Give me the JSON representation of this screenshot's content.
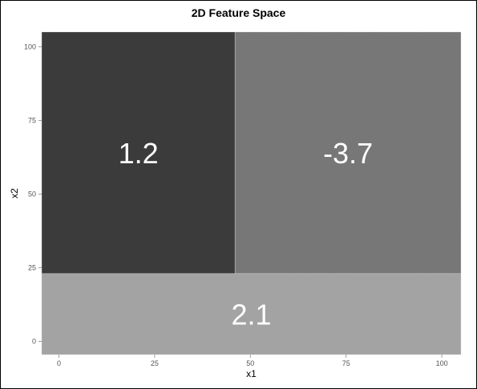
{
  "chart_data": {
    "type": "heatmap",
    "title": "2D Feature Space",
    "xlabel": "x1",
    "ylabel": "x2",
    "xlim": [
      -4.5,
      105
    ],
    "ylim": [
      -4.5,
      105
    ],
    "xticks": [
      0,
      25,
      50,
      75,
      100
    ],
    "yticks": [
      0,
      25,
      50,
      75,
      100
    ],
    "grid": false,
    "regions": [
      {
        "x": [
          -4.5,
          46
        ],
        "y": [
          23,
          105
        ],
        "value": "1.2",
        "color": "#3b3b3b"
      },
      {
        "x": [
          46,
          105
        ],
        "y": [
          23,
          105
        ],
        "value": "-3.7",
        "color": "#777777"
      },
      {
        "x": [
          -4.5,
          105
        ],
        "y": [
          -4.5,
          23
        ],
        "value": "2.1",
        "color": "#a3a3a3"
      }
    ]
  }
}
